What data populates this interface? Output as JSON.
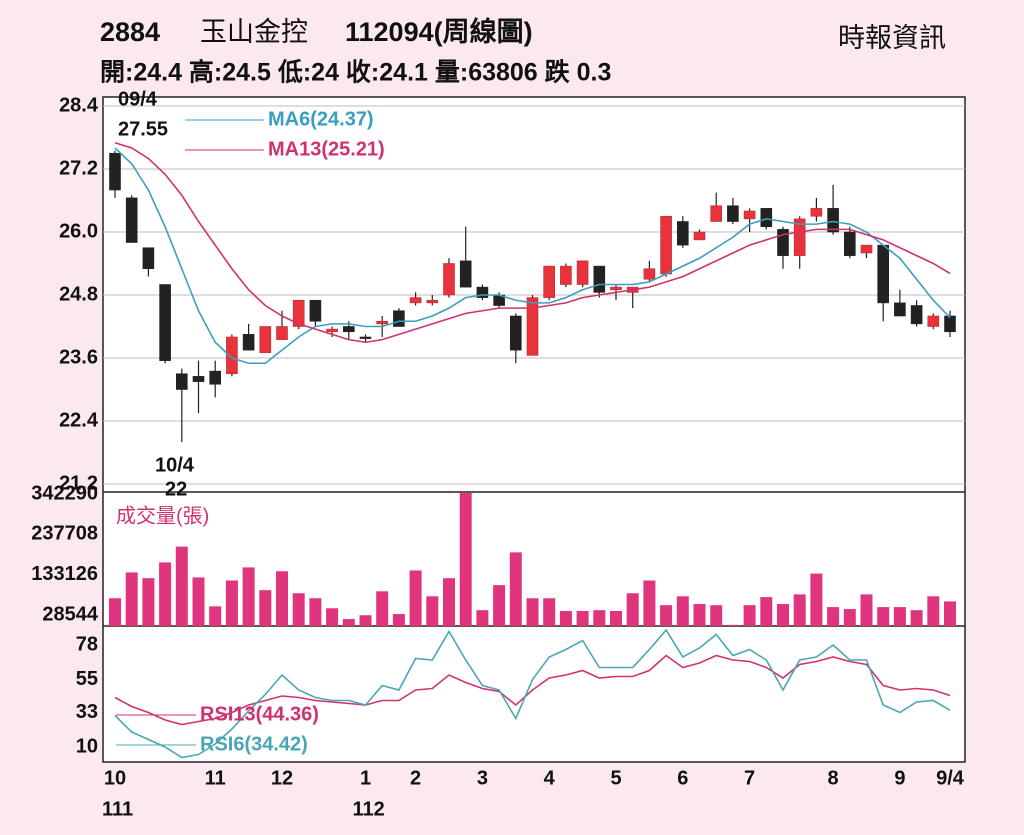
{
  "header": {
    "code": "2884",
    "name": "玉山金控",
    "period": "112094(周線圖)",
    "source": "時報資訊",
    "quote": "開:24.4 高:24.5 低:24 收:24.1 量:63806 跌 0.3"
  },
  "chart_data": [
    {
      "type": "candlestick",
      "annotations": {
        "high_date": "09/4",
        "high_value": 27.55,
        "low_date": "10/4",
        "low_value": 22
      },
      "ohlc": {
        "open": [
          27.5,
          26.65,
          25.7,
          25.0,
          23.3,
          23.25,
          23.35,
          23.3,
          24.05,
          23.7,
          23.95,
          24.2,
          24.7,
          24.1,
          24.2,
          24.0,
          24.25,
          24.5,
          24.65,
          24.65,
          24.8,
          25.45,
          24.95,
          24.8,
          24.4,
          23.65,
          24.75,
          25.0,
          25.0,
          25.35,
          24.9,
          24.85,
          25.1,
          25.2,
          26.2,
          25.85,
          26.2,
          26.5,
          26.25,
          26.45,
          26.05,
          25.55,
          26.3,
          26.45,
          26.0,
          25.6,
          25.75,
          24.65,
          24.6,
          24.2,
          24.4
        ],
        "high": [
          27.55,
          26.7,
          25.7,
          25.0,
          23.4,
          23.55,
          23.55,
          24.05,
          24.25,
          24.2,
          24.5,
          24.7,
          24.7,
          24.2,
          24.3,
          24.05,
          24.4,
          24.55,
          24.85,
          24.8,
          25.5,
          26.1,
          25.0,
          24.85,
          24.45,
          24.8,
          25.35,
          25.4,
          25.45,
          25.35,
          25.0,
          24.95,
          25.45,
          26.3,
          26.3,
          26.05,
          26.75,
          26.65,
          26.45,
          26.45,
          26.1,
          26.3,
          26.65,
          26.9,
          26.1,
          25.75,
          25.75,
          24.9,
          24.7,
          24.45,
          24.5
        ],
        "low": [
          26.65,
          25.8,
          25.15,
          23.5,
          22.0,
          22.55,
          22.85,
          23.25,
          23.75,
          23.7,
          23.95,
          24.15,
          24.2,
          24.0,
          23.95,
          23.9,
          24.0,
          24.2,
          24.6,
          24.6,
          24.75,
          24.95,
          24.7,
          24.55,
          23.5,
          23.65,
          24.7,
          24.95,
          24.95,
          24.75,
          24.7,
          24.55,
          25.05,
          25.15,
          25.7,
          25.85,
          26.2,
          26.15,
          26.0,
          26.05,
          25.3,
          25.3,
          26.2,
          25.95,
          25.5,
          25.5,
          24.3,
          24.4,
          24.2,
          24.15,
          24.0
        ],
        "close": [
          26.8,
          25.8,
          25.3,
          23.55,
          23.0,
          23.15,
          23.1,
          24.0,
          23.75,
          24.2,
          24.2,
          24.7,
          24.3,
          24.15,
          24.1,
          23.97,
          24.3,
          24.2,
          24.75,
          24.7,
          25.4,
          24.95,
          24.75,
          24.6,
          23.75,
          24.75,
          25.35,
          25.35,
          25.45,
          24.85,
          24.95,
          24.95,
          25.3,
          26.3,
          25.75,
          26.0,
          26.5,
          26.2,
          26.4,
          26.1,
          25.55,
          26.25,
          26.45,
          26.0,
          25.55,
          25.75,
          24.65,
          24.4,
          24.25,
          24.4,
          24.1
        ]
      },
      "up_color": "#e8333c",
      "down_color": "#222222",
      "series": [
        {
          "name": "MA6(24.37)",
          "color": "#3a9fbf",
          "values": [
            27.6,
            27.3,
            26.8,
            26.1,
            25.3,
            24.5,
            23.9,
            23.6,
            23.5,
            23.5,
            23.75,
            24.0,
            24.2,
            24.25,
            24.25,
            24.2,
            24.2,
            24.3,
            24.3,
            24.4,
            24.55,
            24.75,
            24.8,
            24.8,
            24.7,
            24.65,
            24.65,
            24.75,
            24.9,
            25.0,
            25.0,
            25.0,
            25.05,
            25.2,
            25.35,
            25.5,
            25.7,
            25.9,
            26.15,
            26.25,
            26.2,
            26.15,
            26.15,
            26.2,
            26.15,
            26.0,
            25.75,
            25.5,
            25.1,
            24.7,
            24.37
          ]
        },
        {
          "name": "MA13(25.21)",
          "color": "#d0326e",
          "values": [
            27.7,
            27.6,
            27.4,
            27.1,
            26.7,
            26.2,
            25.75,
            25.3,
            24.9,
            24.6,
            24.4,
            24.25,
            24.15,
            24.05,
            23.95,
            23.9,
            23.95,
            24.05,
            24.15,
            24.25,
            24.35,
            24.45,
            24.5,
            24.55,
            24.55,
            24.55,
            24.6,
            24.65,
            24.75,
            24.8,
            24.85,
            24.9,
            24.95,
            25.05,
            25.15,
            25.3,
            25.45,
            25.6,
            25.75,
            25.85,
            25.95,
            26.0,
            26.05,
            26.05,
            26.05,
            25.95,
            25.85,
            25.7,
            25.55,
            25.4,
            25.21
          ]
        }
      ],
      "ylim": [
        21.2,
        28.4
      ],
      "yticks": [
        21.2,
        22.4,
        23.6,
        24.8,
        {
          "value": 26.0,
          "label": "26.0"
        },
        27.2,
        28.4
      ],
      "grid": true
    },
    {
      "type": "bar",
      "title": "成交量(張)",
      "color": "#e0357e",
      "values": [
        72000,
        139000,
        124000,
        165000,
        206000,
        126000,
        51000,
        118000,
        152000,
        93000,
        142000,
        85000,
        72000,
        46000,
        18000,
        28000,
        90000,
        31000,
        144000,
        77000,
        124000,
        360000,
        41000,
        106000,
        191000,
        72000,
        72000,
        39000,
        39000,
        41000,
        39000,
        85000,
        118000,
        54000,
        77000,
        57000,
        54000,
        3000,
        54000,
        75000,
        57000,
        82000,
        136000,
        49000,
        44000,
        82000,
        49000,
        49000,
        41000,
        77000,
        63806
      ],
      "ylim": [
        0,
        345000
      ],
      "yticks": [
        28544,
        133126,
        237708,
        342290
      ]
    },
    {
      "type": "line",
      "categories": [
        "10",
        null,
        null,
        null,
        null,
        null,
        "11",
        null,
        null,
        null,
        "12",
        null,
        null,
        null,
        null,
        "1",
        null,
        null,
        "2",
        null,
        null,
        null,
        "3",
        null,
        null,
        null,
        "4",
        null,
        null,
        null,
        "5",
        null,
        null,
        null,
        "6",
        null,
        null,
        null,
        "7",
        null,
        null,
        null,
        null,
        "8",
        null,
        null,
        null,
        "9",
        null,
        null,
        "9/4"
      ],
      "years": [
        "111",
        null,
        null,
        null,
        null,
        null,
        null,
        null,
        null,
        null,
        null,
        null,
        null,
        null,
        null,
        "112",
        null,
        null,
        null,
        null,
        null,
        null,
        null,
        null,
        null,
        null,
        null,
        null,
        null,
        null,
        null,
        null,
        null,
        null,
        null,
        null,
        null,
        null,
        null,
        null,
        null,
        null,
        null,
        null,
        null,
        null,
        null,
        null,
        null,
        null,
        null
      ],
      "series": [
        {
          "name": "RSI13(44.36)",
          "color": "#d0326e",
          "values": [
            43,
            37,
            33,
            28,
            25,
            27,
            29,
            33,
            38,
            41,
            44,
            43,
            41,
            40,
            39,
            38,
            41,
            41,
            48,
            49,
            58,
            53,
            49,
            47,
            38,
            48,
            56,
            58,
            61,
            56,
            57,
            57,
            61,
            71,
            63,
            66,
            71,
            68,
            67,
            63,
            56,
            65,
            67,
            70,
            67,
            65,
            51,
            48,
            49,
            48,
            44.36
          ]
        },
        {
          "name": "RSI6(34.42)",
          "color": "#49a7b4",
          "values": [
            31,
            20,
            15,
            10,
            3,
            5,
            12,
            22,
            34,
            45,
            58,
            48,
            43,
            41,
            41,
            38,
            51,
            48,
            69,
            68,
            87,
            68,
            51,
            48,
            29,
            55,
            70,
            75,
            81,
            63,
            63,
            63,
            75,
            88,
            70,
            76,
            85,
            71,
            75,
            68,
            48,
            68,
            70,
            78,
            68,
            68,
            38,
            33,
            40,
            41,
            34.42
          ]
        }
      ],
      "ylim": [
        0,
        90
      ],
      "yticks": [
        10,
        33,
        55,
        78
      ]
    }
  ]
}
